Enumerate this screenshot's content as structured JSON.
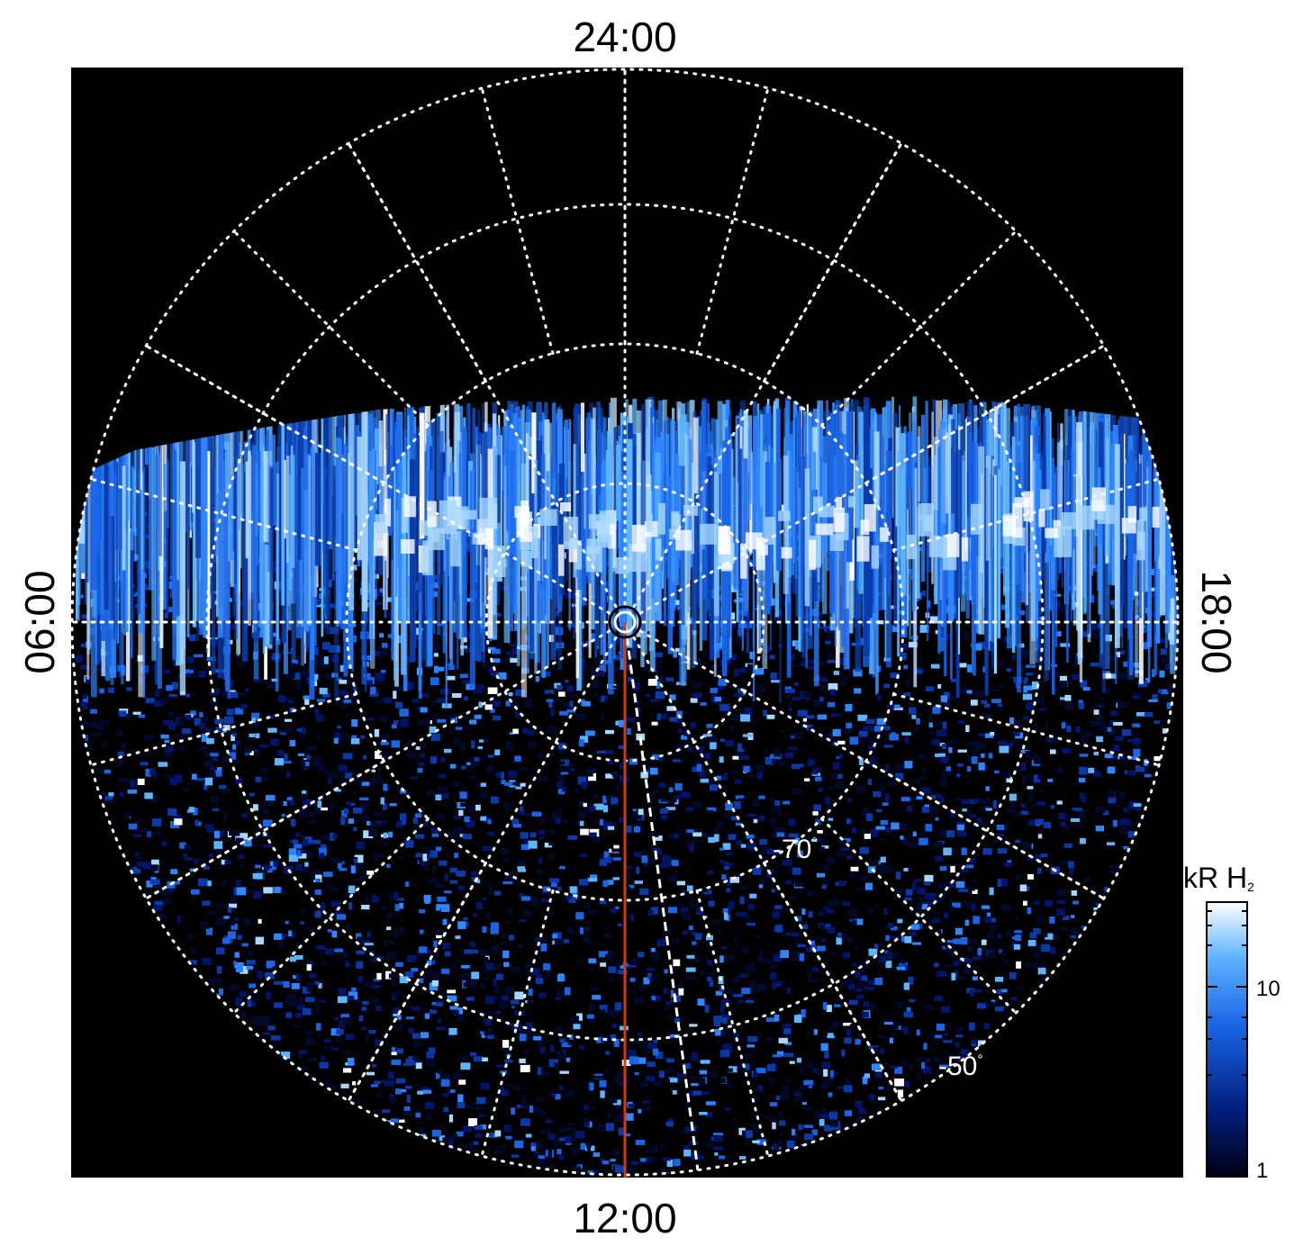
{
  "local_time_labels": {
    "top": "24:00",
    "bottom": "12:00",
    "left": "06:00",
    "right": "18:00"
  },
  "latitude_labels": {
    "lat_70": "-70",
    "lat_50": "-50",
    "degree": "°"
  },
  "colorbar": {
    "title_main": "kR H",
    "title_sub": "2",
    "ticks": [
      "10",
      "1"
    ],
    "scale": "log",
    "range": [
      1,
      30
    ]
  },
  "colors": {
    "background": "#000000",
    "low": "#000014",
    "mid": "#1a64e6",
    "high": "#ffffff",
    "grid": "#ffffff",
    "meridian_line": "#d23a12"
  },
  "image_content": {
    "projection": "polar",
    "hemisphere": "south",
    "grid": "dotted",
    "auroral_band": "bright emission band spanning 06:00 to 18:00 on the night side"
  }
}
